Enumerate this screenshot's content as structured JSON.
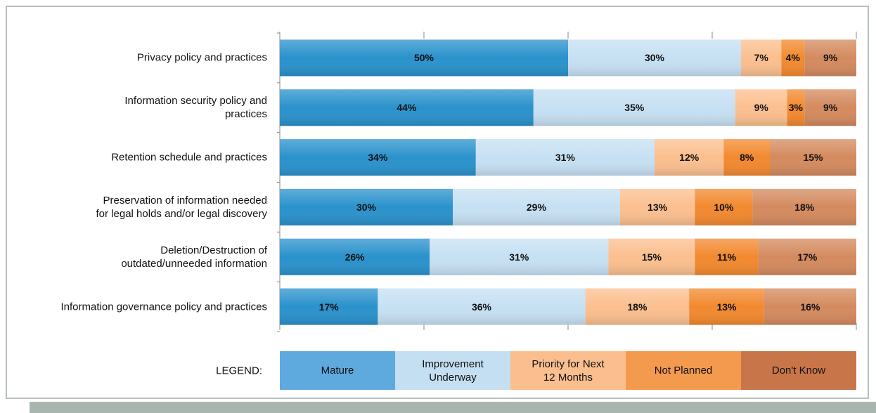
{
  "chart_data": {
    "type": "stacked-barh",
    "legend_title": "LEGEND:",
    "categories": [
      "Privacy policy and practices",
      "Information security policy and\npractices",
      "Retention schedule and practices",
      "Preservation of information needed\nfor legal holds and/or legal discovery",
      "Deletion/Destruction of\noutdated/unneeded information ",
      "Information governance policy and practices"
    ],
    "series": [
      {
        "name": "Mature",
        "color": "#2a92cc",
        "legend_color": "#5ea9dd",
        "values": [
          50,
          44,
          34,
          30,
          26,
          17
        ],
        "value_labels": [
          "50%",
          "44%",
          "34%",
          "30%",
          "26%",
          "17%"
        ]
      },
      {
        "name": "Improvement\nUnderway",
        "color": "#c6e0f3",
        "legend_color": "#c4dff2",
        "values": [
          30,
          35,
          31,
          29,
          31,
          36
        ],
        "value_labels": [
          "30%",
          "35%",
          "31%",
          "29%",
          "31%",
          "36%"
        ]
      },
      {
        "name": "Priority for Next\n12 Months",
        "color": "#fbbf8f",
        "legend_color": "#fbbf8f",
        "values": [
          7,
          9,
          12,
          13,
          15,
          18
        ],
        "value_labels": [
          "7%",
          "9%",
          "12%",
          "13%",
          "15%",
          "18%"
        ]
      },
      {
        "name": "Not Planned",
        "color": "#f2892f",
        "legend_color": "#f39a4f",
        "values": [
          4,
          3,
          8,
          10,
          11,
          13
        ],
        "value_labels": [
          "4%",
          "3%",
          "8%",
          "10%",
          "11%",
          "13%"
        ]
      },
      {
        "name": "Don't Know",
        "color": "#d48a5e",
        "legend_color": "#c9754a",
        "values": [
          9,
          9,
          15,
          18,
          17,
          16
        ],
        "value_labels": [
          "9%",
          "9%",
          "15%",
          "18%",
          "17%",
          "16%"
        ]
      }
    ],
    "xlim": [
      0,
      100
    ],
    "xticks": [
      0,
      25,
      50,
      75,
      100
    ]
  }
}
